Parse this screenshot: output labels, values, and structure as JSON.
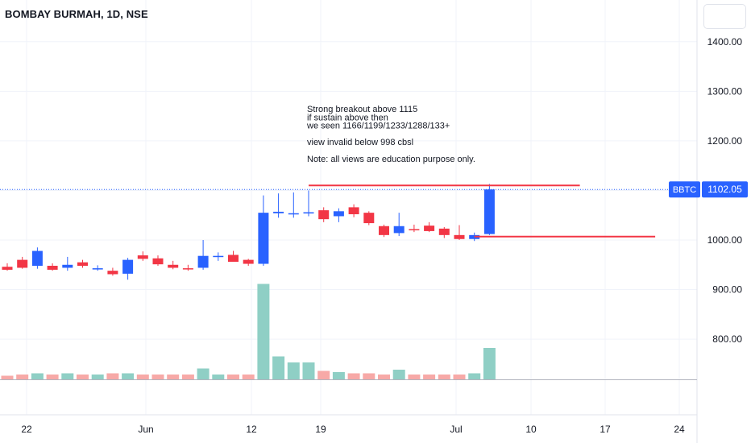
{
  "header": {
    "symbol_title": "BOMBAY BURMAH, 1D, NSE"
  },
  "price_label": {
    "ticker": "BBTC",
    "price": "1102.05",
    "color": "#2962ff"
  },
  "annotation": {
    "lines": [
      "Strong breakout above 1115",
      "if sustain above then",
      "we seen 1166/1199/1233/1288/133+",
      "",
      "view invalid below 998 cbsl",
      "",
      "Note: all views are education purpose only."
    ]
  },
  "colors": {
    "up": "#2962ff",
    "down": "#f23645",
    "volume_up": "#8fcfc5",
    "volume_down": "#f7a9a7",
    "grid": "#f0f3fa",
    "trendline": "#f23645"
  },
  "chart_data": {
    "type": "candlestick",
    "y_axis": {
      "min": 740,
      "max": 1490,
      "ticks": [
        "800.00",
        "900.00",
        "1000.00",
        "1100.00",
        "1200.00",
        "1300.00",
        "1400.00"
      ]
    },
    "x_axis": {
      "tick_labels": [
        "22",
        "Jun",
        "12",
        "19",
        "Jul",
        "10",
        "17",
        "24"
      ]
    },
    "candles": [
      {
        "o": 946,
        "h": 953,
        "l": 938,
        "c": 940
      },
      {
        "o": 960,
        "h": 966,
        "l": 942,
        "c": 944
      },
      {
        "o": 948,
        "h": 985,
        "l": 942,
        "c": 978
      },
      {
        "o": 948,
        "h": 953,
        "l": 938,
        "c": 940
      },
      {
        "o": 944,
        "h": 966,
        "l": 938,
        "c": 950
      },
      {
        "o": 955,
        "h": 960,
        "l": 944,
        "c": 948
      },
      {
        "o": 942,
        "h": 949,
        "l": 938,
        "c": 943
      },
      {
        "o": 938,
        "h": 944,
        "l": 928,
        "c": 931
      },
      {
        "o": 932,
        "h": 964,
        "l": 920,
        "c": 960
      },
      {
        "o": 969,
        "h": 977,
        "l": 958,
        "c": 962
      },
      {
        "o": 963,
        "h": 969,
        "l": 948,
        "c": 951
      },
      {
        "o": 950,
        "h": 958,
        "l": 941,
        "c": 944
      },
      {
        "o": 943,
        "h": 950,
        "l": 938,
        "c": 941
      },
      {
        "o": 944,
        "h": 1000,
        "l": 940,
        "c": 968
      },
      {
        "o": 966,
        "h": 975,
        "l": 958,
        "c": 968
      },
      {
        "o": 970,
        "h": 978,
        "l": 958,
        "c": 956
      },
      {
        "o": 960,
        "h": 962,
        "l": 948,
        "c": 952
      },
      {
        "o": 952,
        "h": 1090,
        "l": 948,
        "c": 1055
      },
      {
        "o": 1054,
        "h": 1094,
        "l": 1045,
        "c": 1057
      },
      {
        "o": 1052,
        "h": 1096,
        "l": 1045,
        "c": 1054
      },
      {
        "o": 1054,
        "h": 1100,
        "l": 1048,
        "c": 1056
      },
      {
        "o": 1060,
        "h": 1066,
        "l": 1036,
        "c": 1042
      },
      {
        "o": 1048,
        "h": 1064,
        "l": 1036,
        "c": 1058
      },
      {
        "o": 1066,
        "h": 1072,
        "l": 1046,
        "c": 1052
      },
      {
        "o": 1055,
        "h": 1058,
        "l": 1030,
        "c": 1034
      },
      {
        "o": 1028,
        "h": 1031,
        "l": 1006,
        "c": 1010
      },
      {
        "o": 1014,
        "h": 1055,
        "l": 1008,
        "c": 1028
      },
      {
        "o": 1022,
        "h": 1031,
        "l": 1016,
        "c": 1020
      },
      {
        "o": 1029,
        "h": 1036,
        "l": 1016,
        "c": 1018
      },
      {
        "o": 1023,
        "h": 1026,
        "l": 1004,
        "c": 1010
      },
      {
        "o": 1010,
        "h": 1030,
        "l": 1000,
        "c": 1002
      },
      {
        "o": 1002,
        "h": 1015,
        "l": 998,
        "c": 1010
      },
      {
        "o": 1012,
        "h": 1113,
        "l": 1010,
        "c": 1102
      }
    ],
    "volume": [
      3,
      4,
      5,
      4,
      5,
      4,
      4,
      5,
      5,
      4,
      4,
      4,
      4,
      9,
      4,
      4,
      4,
      79,
      19,
      14,
      14,
      7,
      6,
      5,
      5,
      4,
      8,
      4,
      4,
      4,
      4,
      5,
      26
    ],
    "trendlines": [
      {
        "from_index": 20,
        "to_index": 38,
        "value": 1110
      },
      {
        "from_index": 31,
        "to_index": 43,
        "value": 1007
      }
    ]
  }
}
